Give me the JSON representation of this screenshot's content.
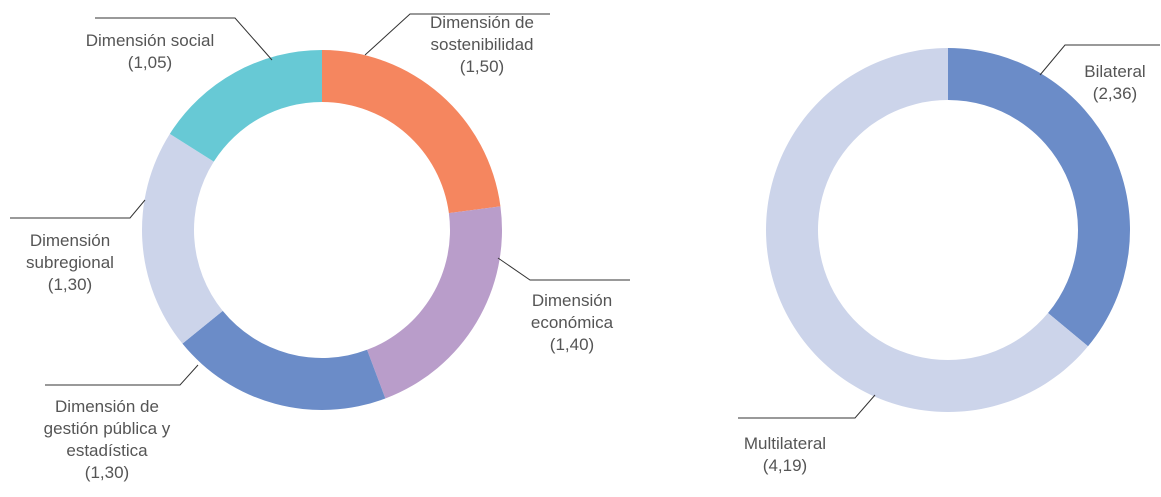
{
  "chart_data": [
    {
      "type": "donut",
      "categories": [
        "Dimensión de sostenibilidad",
        "Dimensión económica",
        "Dimensión de gestión pública y estadística",
        "Dimensión subregional",
        "Dimensión social"
      ],
      "values": [
        1.5,
        1.4,
        1.3,
        1.3,
        1.05
      ],
      "value_labels": [
        "(1,50)",
        "(1,40)",
        "(1,30)",
        "(1,30)",
        "(1,05)"
      ],
      "colors": [
        "#f5865f",
        "#b99dca",
        "#6b8cc8",
        "#ccd4ea",
        "#67c9d5"
      ]
    },
    {
      "type": "donut",
      "categories": [
        "Bilateral",
        "Multilateral"
      ],
      "values": [
        2.36,
        4.19
      ],
      "value_labels": [
        "(2,36)",
        "(4,19)"
      ],
      "colors": [
        "#6b8cc8",
        "#ccd4ea"
      ]
    }
  ]
}
